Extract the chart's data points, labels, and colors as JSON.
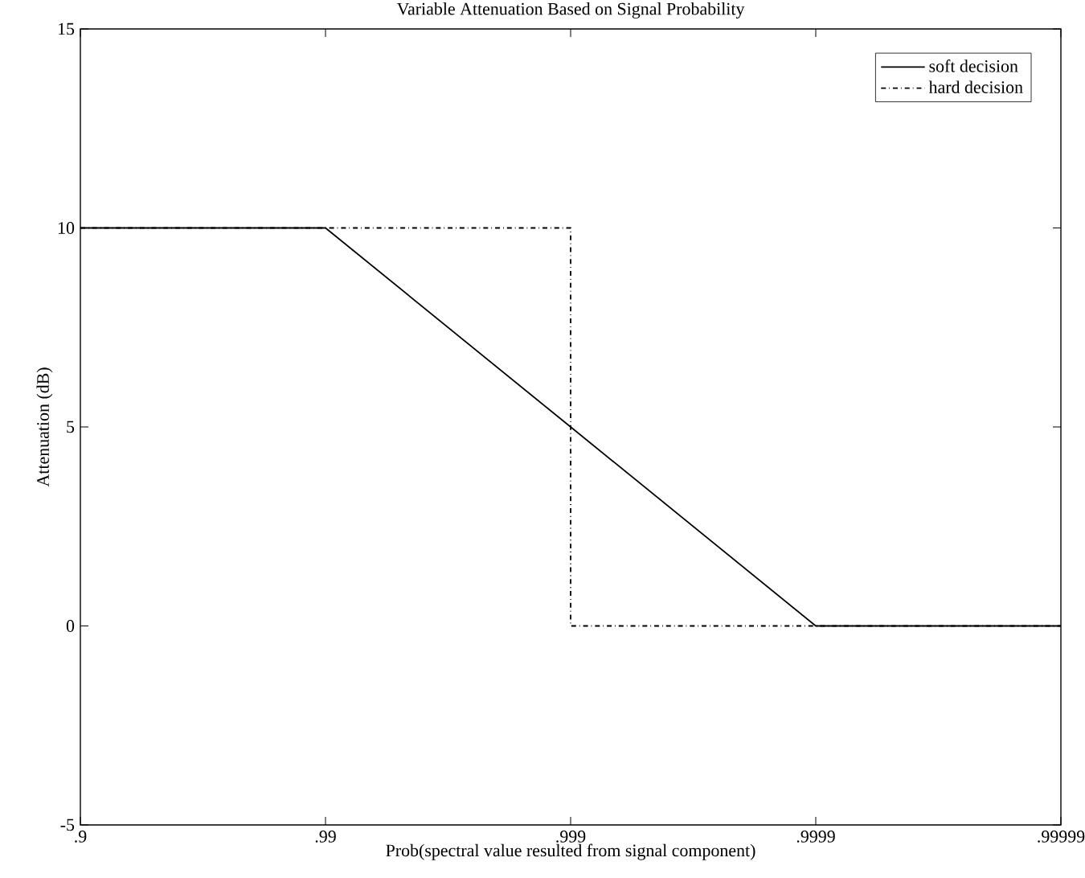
{
  "chart_data": {
    "type": "line",
    "title": "Variable Attenuation Based on Signal Probability",
    "xlabel": "Prob(spectral value resulted from signal component)",
    "ylabel": "Attenuation (dB)",
    "categories": [
      ".9",
      ".99",
      ".999",
      ".9999",
      ".99999"
    ],
    "ylim": [
      -5,
      15
    ],
    "yticks": [
      -5,
      0,
      5,
      10,
      15
    ],
    "series": [
      {
        "name": "soft decision",
        "color": "#000000",
        "line_style": "solid",
        "values": [
          10,
          10,
          5,
          0,
          0
        ]
      },
      {
        "name": "hard decision",
        "type": "step",
        "color": "#000000",
        "line_style": "dashdot",
        "values": [
          10,
          10,
          0,
          0,
          0
        ]
      }
    ],
    "legend": "top right",
    "grid": false,
    "marker": "none"
  }
}
